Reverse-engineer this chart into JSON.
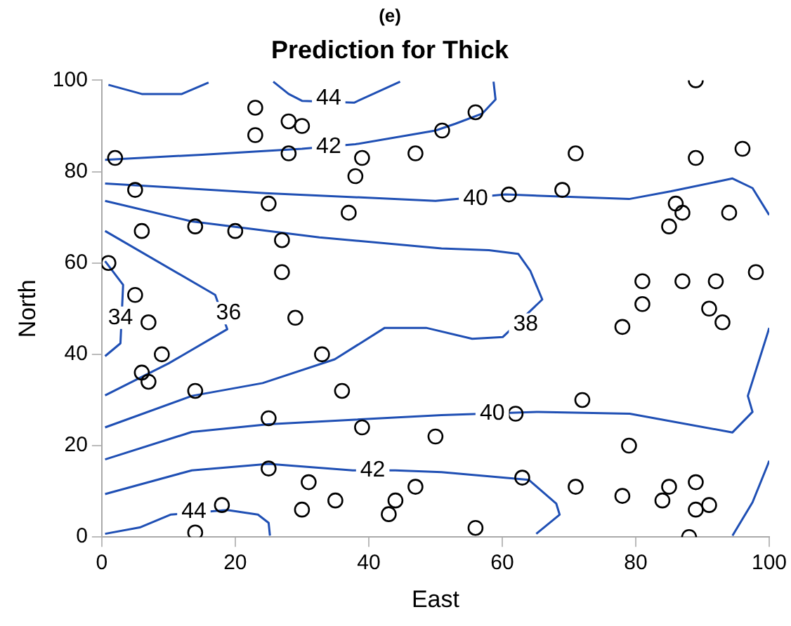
{
  "chart_data": {
    "type": "scatter",
    "title": "(e)",
    "subtitle": "Prediction for Thick",
    "xlabel": "East",
    "ylabel": "North",
    "xlim": [
      0,
      100
    ],
    "ylim": [
      0,
      100
    ],
    "xticks": [
      0,
      20,
      40,
      60,
      80,
      100
    ],
    "yticks": [
      0,
      20,
      40,
      60,
      80,
      100
    ],
    "grid": false,
    "legend": false,
    "line_style": "solid",
    "series": [
      {
        "marker": "circle",
        "color": "#000000",
        "x": [
          23,
          28,
          30,
          23,
          28,
          2,
          39,
          47,
          51,
          38,
          5,
          25,
          37,
          6,
          14,
          20,
          27,
          27,
          1,
          5,
          56,
          71,
          89,
          96,
          89,
          61,
          69,
          86,
          87,
          85,
          94,
          98,
          81,
          87,
          92,
          81,
          91,
          93,
          78,
          7,
          9,
          6,
          7,
          14,
          29,
          33,
          36,
          25,
          39,
          50,
          25,
          31,
          30,
          35,
          44,
          43,
          47,
          18,
          14,
          72,
          62,
          79,
          63,
          71,
          78,
          85,
          84,
          89,
          89,
          91,
          56,
          88
        ],
        "values": [
          94,
          91,
          90,
          88,
          84,
          83,
          83,
          84,
          89,
          79,
          76,
          73,
          71,
          67,
          68,
          67,
          65,
          58,
          60,
          53,
          93,
          84,
          83,
          85,
          100,
          75,
          76,
          73,
          71,
          68,
          71,
          58,
          56,
          56,
          56,
          51,
          50,
          47,
          46,
          47,
          40,
          36,
          34,
          32,
          48,
          40,
          32,
          26,
          24,
          22,
          15,
          12,
          6,
          8,
          8,
          5,
          11,
          7,
          1,
          30,
          27,
          20,
          13,
          11,
          9,
          11,
          8,
          12,
          6,
          7,
          2,
          0
        ]
      },
      {
        "type": "line",
        "color": "#1f4fb4",
        "x": [
          1,
          6,
          12,
          16
        ],
        "values": [
          99,
          97,
          97,
          99.5
        ]
      },
      {
        "type": "line",
        "color": "#1f4fb4",
        "x": [
          25.7,
          28,
          30,
          33,
          37.8,
          44.7
        ],
        "values": [
          99.7,
          97,
          95.5,
          null,
          95.1,
          99.7
        ]
      },
      {
        "type": "line",
        "color": "#1f4fb4",
        "x": [
          0.5,
          15,
          30,
          34,
          38,
          50,
          53,
          57,
          59,
          58.7
        ],
        "values": [
          82.6,
          83.7,
          85,
          null,
          86,
          89,
          90.5,
          92.7,
          95.8,
          99.7
        ]
      },
      {
        "type": "line",
        "color": "#1f4fb4",
        "x": [
          0.5,
          24.5,
          50,
          56,
          60.5,
          79,
          85.3,
          94.5,
          97.5,
          100
        ],
        "values": [
          77.4,
          75.3,
          73.6,
          null,
          75,
          74,
          75.7,
          78.5,
          76.4,
          70.5
        ]
      },
      {
        "type": "line",
        "color": "#1f4fb4",
        "x": [
          0.5,
          13.5,
          32.6,
          50.9,
          58,
          62.4,
          64.2,
          66,
          63.5,
          60.1,
          55.5,
          48.6,
          42.4,
          34.9,
          24.1,
          13.5,
          0.5
        ],
        "values": [
          73.6,
          69.1,
          65.6,
          63.2,
          62.8,
          62,
          58.3,
          52,
          null,
          43.8,
          43.4,
          45.8,
          45.8,
          38.9,
          33.7,
          30.9,
          24
        ]
      },
      {
        "type": "line",
        "color": "#1f4fb4",
        "x": [
          0.5,
          17,
          18.8,
          10,
          0.5
        ],
        "values": [
          67,
          53,
          45.5,
          38,
          31
        ]
      },
      {
        "type": "line",
        "color": "#1f4fb4",
        "x": [
          0.5,
          3.2,
          2.8,
          0.5
        ],
        "values": [
          60.4,
          55.2,
          42.4,
          39.6
        ]
      },
      {
        "type": "line",
        "color": "#1f4fb4",
        "x": [
          0.5,
          13.5,
          25,
          50.9,
          61,
          65.4,
          79.1,
          94.5,
          97.5,
          96.8,
          99.8,
          100
        ],
        "values": [
          17,
          23,
          24.7,
          26.7,
          null,
          27.4,
          27,
          22.9,
          27.4,
          30.9,
          44.8,
          45.8
        ]
      },
      {
        "type": "line",
        "color": "#1f4fb4",
        "x": [
          0.5,
          13.5,
          25,
          37.6,
          40.6,
          44,
          50.9,
          64,
          68.1,
          68.6,
          65.1
        ],
        "values": [
          9.4,
          14.6,
          16,
          14.6,
          null,
          14.6,
          14.2,
          12.5,
          7.3,
          4.9,
          0.7
        ]
      },
      {
        "type": "line",
        "color": "#1f4fb4",
        "x": [
          94.5,
          97.5,
          99.8,
          100
        ],
        "values": [
          0.3,
          7.6,
          15.9,
          16.7
        ]
      },
      {
        "type": "line",
        "color": "#1f4fb4",
        "x": [
          0.5,
          5.7,
          10.3,
          13.8,
          18.8,
          23.4,
          25,
          25.2
        ],
        "values": [
          0.7,
          2.1,
          4.9,
          null,
          5.9,
          4.9,
          3.1,
          0.3
        ]
      }
    ],
    "annotations": [
      {
        "text": "44",
        "x": 34,
        "y": 96
      },
      {
        "text": "42",
        "x": 34,
        "y": 85.5
      },
      {
        "text": "40",
        "x": 56,
        "y": 74
      },
      {
        "text": "38",
        "x": 63.5,
        "y": 46.5
      },
      {
        "text": "36",
        "x": 19,
        "y": 49
      },
      {
        "text": "34",
        "x": 2.8,
        "y": 48
      },
      {
        "text": "40",
        "x": 58.5,
        "y": 27
      },
      {
        "text": "42",
        "x": 40.6,
        "y": 14.6
      },
      {
        "text": "44",
        "x": 13.8,
        "y": 5.6
      }
    ]
  }
}
